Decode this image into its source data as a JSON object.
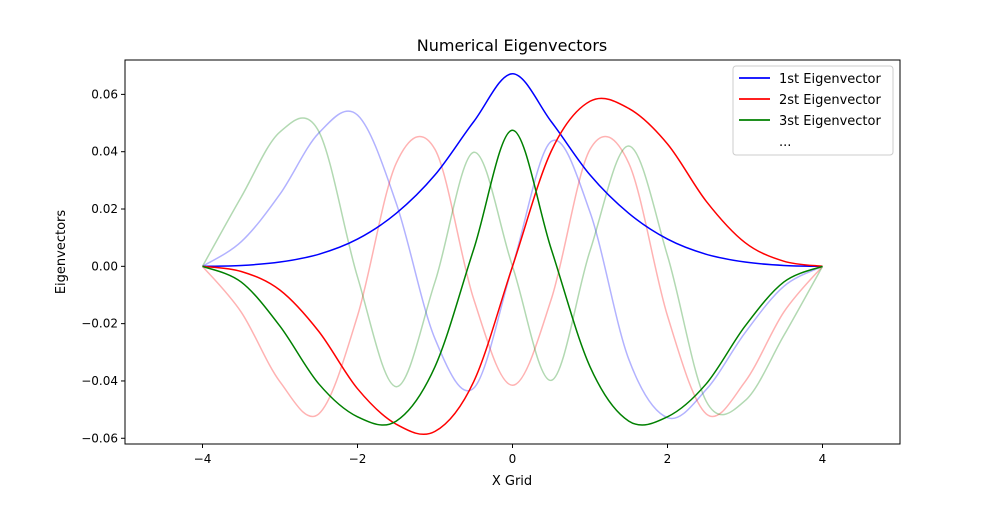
{
  "chart_data": {
    "type": "line",
    "title": "Numerical Eigenvectors",
    "xlabel": "X Grid",
    "ylabel": "Eigenvectors",
    "xlim": [
      -5,
      5
    ],
    "ylim": [
      -0.062,
      0.072
    ],
    "xticks": [
      -4,
      -2,
      0,
      2,
      4
    ],
    "xtick_labels": [
      "−4",
      "−2",
      "0",
      "2",
      "4"
    ],
    "yticks": [
      -0.06,
      -0.04,
      -0.02,
      0.0,
      0.02,
      0.04,
      0.06
    ],
    "ytick_labels": [
      "−0.06",
      "−0.04",
      "−0.02",
      "0.00",
      "0.02",
      "0.04",
      "0.06"
    ],
    "grid": false,
    "legend_position": "top-right",
    "legend": [
      "1st Eigenvector",
      "2st Eigenvector",
      "3st Eigenvector",
      "..."
    ],
    "series": [
      {
        "name": "1st Eigenvector",
        "color": "#0000ff",
        "opacity": 1.0,
        "x": [
          -4,
          -3.5,
          -3,
          -2.5,
          -2,
          -1.5,
          -1,
          -0.5,
          0,
          0.5,
          1,
          1.5,
          2,
          2.5,
          3,
          3.5,
          4
        ],
        "y": [
          0,
          0.0003,
          0.0015,
          0.0042,
          0.0095,
          0.0185,
          0.0319,
          0.0505,
          0.0672,
          0.0505,
          0.0319,
          0.0185,
          0.0095,
          0.0042,
          0.0015,
          0.0003,
          0
        ]
      },
      {
        "name": "2st Eigenvector",
        "color": "#ff0000",
        "opacity": 1.0,
        "x": [
          -4,
          -3.5,
          -3,
          -2.5,
          -2,
          -1.5,
          -1,
          -0.5,
          0,
          0.5,
          1,
          1.5,
          2,
          2.5,
          3,
          3.5,
          4
        ],
        "y": [
          0,
          -0.0018,
          -0.0083,
          -0.0227,
          -0.0427,
          -0.0551,
          -0.0576,
          -0.0402,
          0,
          0.0402,
          0.0576,
          0.0551,
          0.0427,
          0.0227,
          0.0083,
          0.0018,
          0
        ]
      },
      {
        "name": "3st Eigenvector",
        "color": "#008000",
        "opacity": 1.0,
        "x": [
          -4,
          -3.5,
          -3,
          -2.5,
          -2,
          -1.5,
          -1,
          -0.5,
          0,
          0.5,
          1,
          1.5,
          2,
          2.5,
          3,
          3.5,
          4
        ],
        "y": [
          0,
          -0.0055,
          -0.0209,
          -0.041,
          -0.0525,
          -0.054,
          -0.035,
          0.006,
          0.0475,
          0.006,
          -0.035,
          -0.054,
          -0.0525,
          -0.041,
          -0.0209,
          -0.0055,
          0
        ]
      },
      {
        "color": "#0000ff",
        "opacity": 0.3,
        "x": [
          -4,
          -3.5,
          -3,
          -2.5,
          -2,
          -1.5,
          -1,
          -0.5,
          0,
          0.5,
          1,
          1.5,
          2,
          2.5,
          3,
          3.5,
          4
        ],
        "y": [
          0,
          0.0086,
          0.0252,
          0.0465,
          0.0528,
          0.022,
          -0.0253,
          -0.0425,
          0,
          0.0436,
          0.0189,
          -0.0324,
          -0.0528,
          -0.043,
          -0.0232,
          -0.007,
          0
        ]
      },
      {
        "color": "#ff0000",
        "opacity": 0.3,
        "x": [
          -4,
          -3.5,
          -3,
          -2.5,
          -2,
          -1.5,
          -1,
          -0.5,
          0,
          0.5,
          1,
          1.5,
          2,
          2.5,
          3,
          3.5,
          4
        ],
        "y": [
          0,
          -0.016,
          -0.0403,
          -0.0515,
          -0.0173,
          0.036,
          0.0408,
          -0.0115,
          -0.0415,
          -0.0115,
          0.0408,
          0.036,
          -0.0173,
          -0.0515,
          -0.0403,
          -0.016,
          0
        ]
      },
      {
        "color": "#008000",
        "opacity": 0.3,
        "x": [
          -4,
          -3.5,
          -3,
          -2.5,
          -2,
          -1.5,
          -1,
          -0.5,
          0,
          0.5,
          1,
          1.5,
          2,
          2.5,
          3,
          3.5,
          4
        ],
        "y": [
          0,
          0.0242,
          0.0469,
          0.0471,
          -0.0037,
          -0.042,
          -0.0054,
          0.0398,
          0,
          -0.0398,
          0.0054,
          0.042,
          0.0037,
          -0.0471,
          -0.0469,
          -0.0242,
          0
        ]
      }
    ]
  }
}
